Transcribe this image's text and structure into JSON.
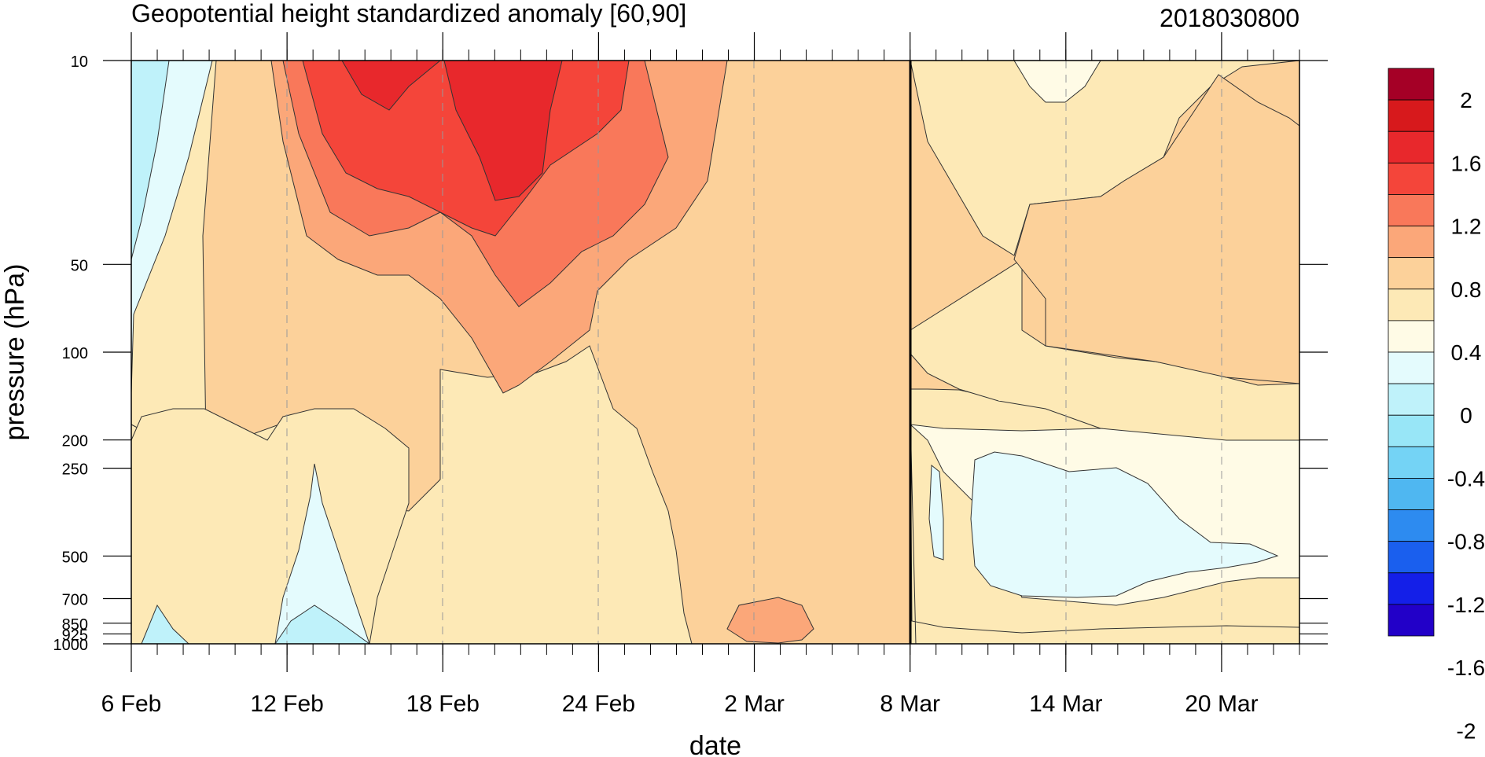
{
  "chart_data": {
    "type": "contour",
    "title": "Geopotential height standardized anomaly [60,90]",
    "date_label": "2018030800",
    "xlabel": "date",
    "ylabel": "pressure (hPa)",
    "x_ticks": [
      "6 Feb",
      "12 Feb",
      "18 Feb",
      "24 Feb",
      "2 Mar",
      "8 Mar",
      "14 Mar",
      "20 Mar"
    ],
    "x_tick_dates": [
      "2018-02-06",
      "2018-02-12",
      "2018-02-18",
      "2018-02-24",
      "2018-03-02",
      "2018-03-08",
      "2018-03-14",
      "2018-03-20"
    ],
    "xlim": [
      "2018-02-06",
      "2018-03-23"
    ],
    "analysis_date_line": "2018-03-08",
    "y_scale": "log",
    "ylim": [
      1000,
      10
    ],
    "y_ticks": [
      "10",
      "50",
      "100",
      "200",
      "250",
      "500",
      "700",
      "850",
      "925",
      "1000"
    ],
    "y_tick_values": [
      10,
      50,
      100,
      200,
      250,
      500,
      700,
      850,
      925,
      1000
    ],
    "colorbar": {
      "labels": [
        "2",
        "1.6",
        "1.2",
        "0.8",
        "0.4",
        "0",
        "-0.4",
        "-0.8",
        "-1.2",
        "-1.6",
        "-2"
      ],
      "colors": [
        "#a50026",
        "#d7191c",
        "#e8282c",
        "#f4453a",
        "#f9785a",
        "#fba779",
        "#fcd19a",
        "#fde9b6",
        "#fffbe6",
        "#e4fbfd",
        "#bff2fa",
        "#98e6f7",
        "#74d3f5",
        "#4fb7f1",
        "#2d8bf0",
        "#1a5fee",
        "#141fe8",
        "#2200c8"
      ]
    },
    "approx_features": [
      {
        "label": "max",
        "date": "2018-02-20",
        "pressure": 10,
        "value": 1.6
      },
      {
        "label": "max",
        "date": "2018-02-15",
        "pressure": 10,
        "value": 1.6
      },
      {
        "label": "min",
        "date": "2018-02-06",
        "pressure": 30,
        "value": -0.4
      },
      {
        "label": "min",
        "date": "2018-03-14",
        "pressure": 400,
        "value": -0.2
      }
    ]
  }
}
